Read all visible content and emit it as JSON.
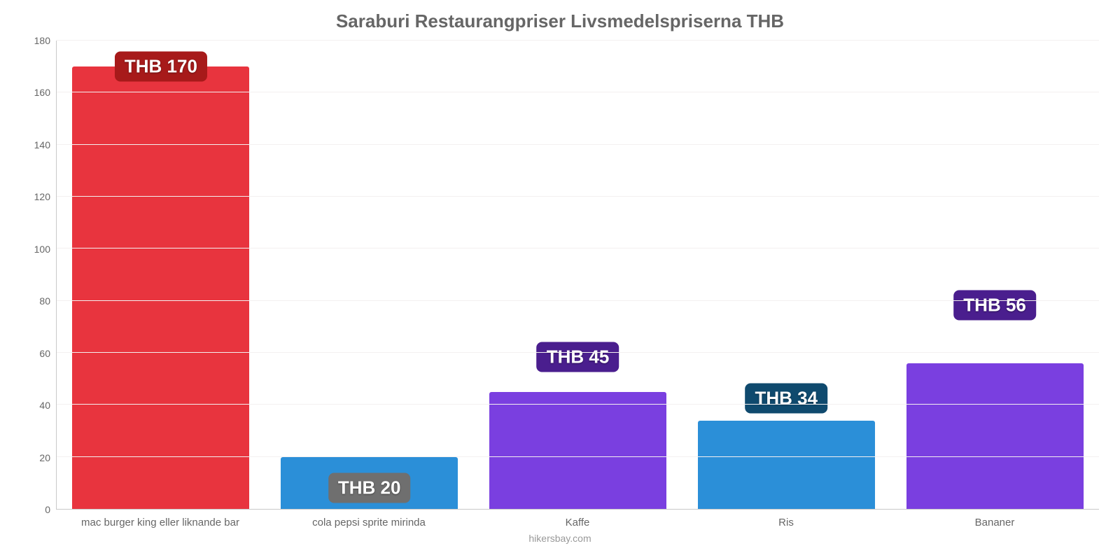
{
  "chart": {
    "type": "bar",
    "title": "Saraburi Restaurangpriser Livsmedelspriserna THB",
    "title_fontsize": 26,
    "title_color": "#666666",
    "footer": "hikersbay.com",
    "footer_color": "#999999",
    "background_color": "#ffffff",
    "grid_color": "#f3f0f0",
    "axis_color": "#c9c9c9",
    "tick_color": "#666666",
    "tick_fontsize": 14,
    "xlabel_fontsize": 15,
    "ylim": [
      0,
      180
    ],
    "ytick_step": 20,
    "yticks": [
      0,
      20,
      40,
      60,
      80,
      100,
      120,
      140,
      160,
      180
    ],
    "bar_width_pct": 85,
    "value_prefix": "THB ",
    "value_fontsize": 26,
    "badge_radius": 8,
    "categories": [
      "mac burger king eller liknande bar",
      "cola pepsi sprite mirinda",
      "Kaffe",
      "Ris",
      "Bananer"
    ],
    "values": [
      170,
      20,
      45,
      34,
      56
    ],
    "bar_colors": [
      "#e8343e",
      "#2b8fd8",
      "#7a3fe0",
      "#2b8fd8",
      "#7a3fe0"
    ],
    "badge_colors": [
      "#a71a1a",
      "#6f6f6f",
      "#4a1e8e",
      "#0f4a6e",
      "#4a1e8e"
    ],
    "badge_offsets": [
      1.0,
      0.4,
      1.3,
      1.25,
      1.4
    ]
  }
}
